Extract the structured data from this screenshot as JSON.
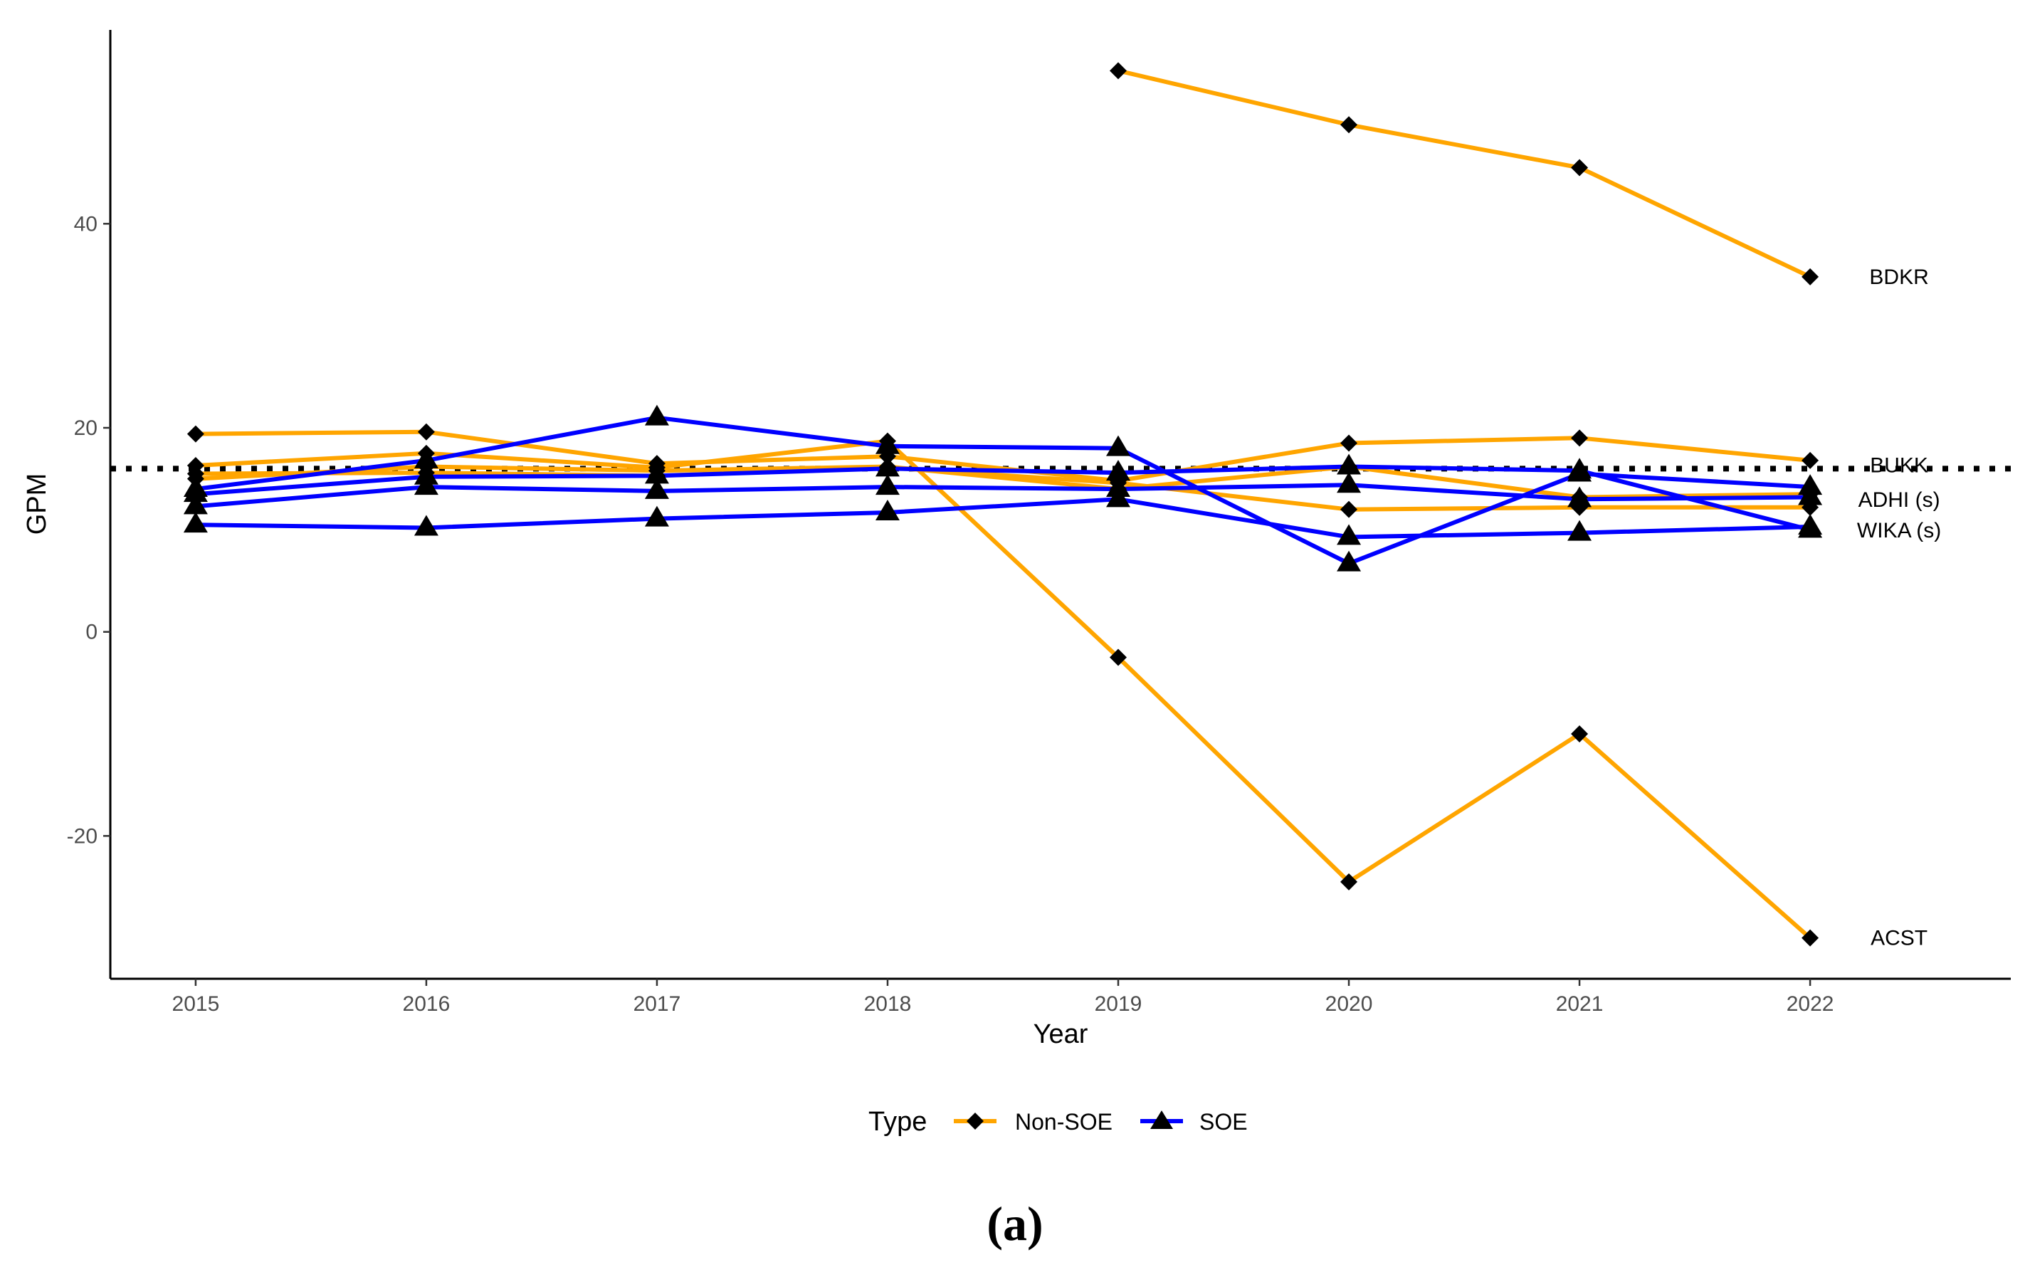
{
  "chart_data": {
    "type": "line",
    "title": "",
    "xlabel": "Year",
    "ylabel": "GPM",
    "caption": "(a)",
    "x": [
      2015,
      2016,
      2017,
      2018,
      2019,
      2020,
      2021,
      2022
    ],
    "xlim": [
      2014.63,
      2022.87
    ],
    "ylim": [
      -34,
      59
    ],
    "yticks": [
      -20,
      0,
      20,
      40
    ],
    "reference_line": {
      "y": 16,
      "style": "dotted"
    },
    "legend": {
      "title": "Type",
      "position": "bottom",
      "entries": [
        {
          "label": "Non-SOE",
          "color": "#FFA500",
          "marker": "diamond"
        },
        {
          "label": "SOE",
          "color": "#0000FF",
          "marker": "triangle"
        }
      ]
    },
    "series": [
      {
        "name": "BDKR",
        "type": "Non-SOE",
        "label": "BDKR",
        "values": [
          null,
          null,
          null,
          null,
          55,
          49.7,
          45.5,
          34.8
        ]
      },
      {
        "name": "ACST",
        "type": "Non-SOE",
        "label": "ACST",
        "values": [
          16.3,
          17.5,
          16.1,
          18.7,
          -2.5,
          -24.5,
          -10,
          -30
        ]
      },
      {
        "name": "BUKK",
        "type": "Non-SOE",
        "label": "BUKK",
        "values": [
          19.4,
          19.6,
          16.5,
          17.2,
          14.8,
          18.5,
          19,
          16.8
        ]
      },
      {
        "name": "Non-SOE 4",
        "type": "Non-SOE",
        "label": "",
        "values": [
          15.5,
          15.6,
          15.3,
          16.1,
          14.6,
          12,
          12.2,
          12.2
        ]
      },
      {
        "name": "Non-SOE 5",
        "type": "Non-SOE",
        "label": "",
        "values": [
          15,
          16.2,
          15.8,
          16.2,
          14,
          16.2,
          13.2,
          13.5
        ]
      },
      {
        "name": "ADHI (s)",
        "type": "SOE",
        "label": "ADHI (s)",
        "values": [
          14,
          16.8,
          21,
          18.2,
          18,
          6.7,
          15.5,
          14.2
        ]
      },
      {
        "name": "WIKA (s)",
        "type": "SOE",
        "label": "WIKA (s)",
        "values": [
          10.5,
          10.2,
          11.1,
          11.7,
          13,
          9.3,
          9.7,
          10.3
        ]
      },
      {
        "name": "SOE 3",
        "type": "SOE",
        "label": "",
        "values": [
          12.3,
          14.2,
          13.8,
          14.2,
          14,
          14.4,
          13,
          13.2
        ]
      },
      {
        "name": "SOE 4",
        "type": "SOE",
        "label": "",
        "values": [
          13.5,
          15.2,
          15.3,
          16,
          15.6,
          16.2,
          15.8,
          10
        ]
      }
    ]
  }
}
